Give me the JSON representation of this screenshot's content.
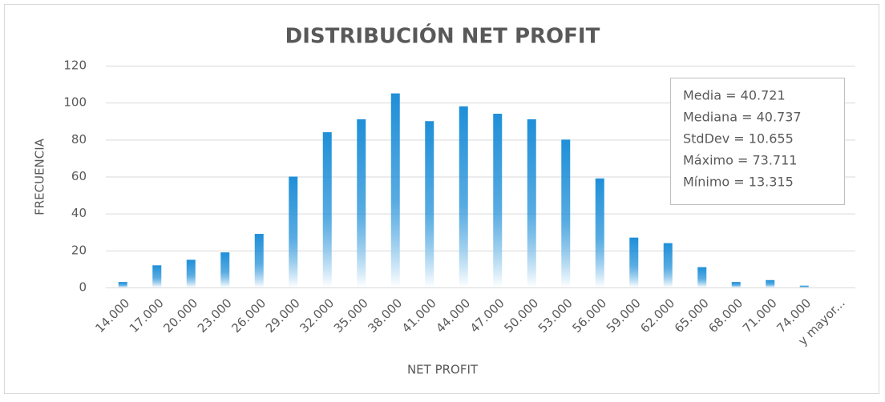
{
  "chart_data": {
    "type": "bar",
    "title": "DISTRIBUCIÓN NET PROFIT",
    "x_label": "NET PROFIT",
    "y_label": "FRECUENCIA",
    "categories": [
      "14.000",
      "17.000",
      "20.000",
      "23.000",
      "26.000",
      "29.000",
      "32.000",
      "35.000",
      "38.000",
      "41.000",
      "44.000",
      "47.000",
      "50.000",
      "53.000",
      "56.000",
      "59.000",
      "62.000",
      "65.000",
      "68.000",
      "71.000",
      "74.000",
      "y mayor..."
    ],
    "values": [
      3,
      12,
      15,
      19,
      29,
      60,
      84,
      91,
      105,
      90,
      98,
      94,
      91,
      80,
      59,
      27,
      24,
      11,
      3,
      4,
      1,
      0
    ],
    "color": "#1f8fd8",
    "ylim": [
      0,
      120
    ],
    "yticks": [
      0,
      20,
      40,
      60,
      80,
      100,
      120
    ],
    "grid": true,
    "annotations": [
      "Media = 40.721",
      "Mediana = 40.737",
      "StdDev = 10.655",
      "Máximo = 73.711",
      "Mínimo = 13.315"
    ]
  }
}
